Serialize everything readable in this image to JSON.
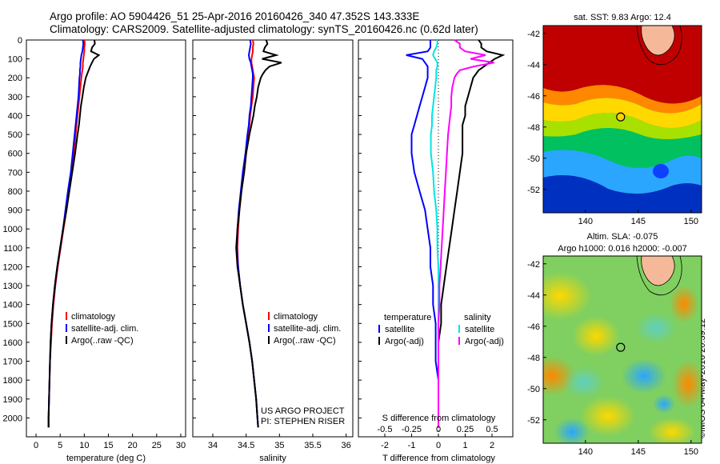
{
  "header": {
    "title_line1": "Argo profile: AO 5904426_51 25-Apr-2016 20160426_340 47.352S 143.333E",
    "title_line2": "Climatology: CARS2009. Satellite-adjusted climatology: synTS_20160426.nc (0.62d later)"
  },
  "timestamp": "©IMOS 04-May-2016 20:39:12",
  "colors": {
    "climatology": "#ff0000",
    "satellite": "#0000ff",
    "argo": "#000000",
    "salinity_satellite": "#00e5e5",
    "salinity_argo": "#ff00ff",
    "land": "#f5b99a"
  },
  "chart_data": [
    {
      "type": "line",
      "panel": "temperature",
      "xlabel": "temperature (deg C)",
      "ylabel": "",
      "xlim": [
        -2,
        31
      ],
      "ylim": [
        2100,
        0
      ],
      "xticks": [
        "0",
        "5",
        "10",
        "15",
        "20",
        "25",
        "30"
      ],
      "yticks": [
        "0",
        "100",
        "200",
        "300",
        "400",
        "500",
        "600",
        "700",
        "800",
        "900",
        "1000",
        "1100",
        "1200",
        "1300",
        "1400",
        "1500",
        "1600",
        "1700",
        "1800",
        "1900",
        "2000"
      ],
      "y": [
        0,
        20,
        40,
        60,
        80,
        100,
        120,
        140,
        160,
        180,
        200,
        250,
        300,
        350,
        400,
        450,
        500,
        600,
        700,
        800,
        900,
        1000,
        1100,
        1200,
        1300,
        1400,
        1500,
        1600,
        1700,
        1800,
        1900,
        2000,
        2050
      ],
      "series": [
        {
          "name": "climatology",
          "values": [
            10.0,
            10.1,
            10.0,
            10.0,
            9.9,
            9.8,
            9.7,
            9.7,
            9.6,
            9.5,
            9.4,
            9.2,
            9.0,
            8.8,
            8.6,
            8.4,
            8.2,
            7.8,
            7.3,
            6.8,
            6.3,
            5.7,
            5.1,
            4.5,
            4.0,
            3.6,
            3.3,
            3.1,
            2.9,
            2.8,
            2.7,
            2.6,
            2.6
          ]
        },
        {
          "name": "satellite-adj. clim.",
          "values": [
            9.7,
            9.8,
            9.7,
            9.6,
            9.4,
            9.3,
            9.2,
            9.2,
            9.1,
            9.1,
            9.0,
            8.9,
            8.8,
            8.6,
            8.4,
            8.2,
            8.0,
            7.6,
            7.2,
            6.6,
            6.1,
            5.6,
            5.0,
            4.4,
            3.9,
            3.5,
            3.2,
            3.0,
            2.9,
            2.8,
            2.7,
            2.6,
            2.6
          ]
        },
        {
          "name": "Argo(..raw -QC)",
          "values": [
            12.1,
            12.2,
            11.6,
            11.4,
            13.0,
            12.0,
            11.6,
            11.2,
            10.9,
            10.6,
            10.3,
            9.9,
            9.6,
            9.3,
            9.1,
            8.9,
            8.6,
            8.1,
            7.5,
            6.9,
            6.3,
            5.6,
            5.0,
            4.4,
            3.9,
            3.5,
            3.2,
            3.0,
            2.9,
            2.8,
            2.7,
            2.6,
            2.6
          ]
        }
      ],
      "legend": [
        "climatology",
        "satellite-adj. clim.",
        "Argo(..raw -QC)"
      ]
    },
    {
      "type": "line",
      "panel": "salinity",
      "xlabel": "salinity",
      "xlim": [
        33.7,
        36.1
      ],
      "ylim": [
        2100,
        0
      ],
      "xticks": [
        "34",
        "34.5",
        "35",
        "35.5",
        "36"
      ],
      "y": [
        0,
        20,
        40,
        60,
        80,
        100,
        120,
        140,
        160,
        180,
        200,
        250,
        300,
        350,
        400,
        450,
        500,
        600,
        700,
        800,
        900,
        1000,
        1100,
        1200,
        1300,
        1400,
        1500,
        1600,
        1700,
        1800,
        1900,
        2000,
        2050
      ],
      "series": [
        {
          "name": "climatology",
          "values": [
            34.6,
            34.61,
            34.6,
            34.6,
            34.59,
            34.58,
            34.58,
            34.59,
            34.6,
            34.61,
            34.62,
            34.61,
            34.6,
            34.58,
            34.56,
            34.55,
            34.53,
            34.5,
            34.47,
            34.43,
            34.4,
            34.38,
            34.37,
            34.38,
            34.41,
            34.45,
            34.5,
            34.55,
            34.59,
            34.62,
            34.65,
            34.67,
            34.68
          ]
        },
        {
          "name": "satellite-adj. clim.",
          "values": [
            34.56,
            34.57,
            34.56,
            34.55,
            34.54,
            34.55,
            34.57,
            34.58,
            34.59,
            34.6,
            34.6,
            34.59,
            34.58,
            34.57,
            34.55,
            34.54,
            34.52,
            34.49,
            34.45,
            34.42,
            34.39,
            34.37,
            34.36,
            34.38,
            34.41,
            34.45,
            34.5,
            34.55,
            34.59,
            34.62,
            34.65,
            34.67,
            34.68
          ]
        },
        {
          "name": "Argo(..raw -QC)",
          "values": [
            34.8,
            34.82,
            34.78,
            34.76,
            34.95,
            34.74,
            35.03,
            34.85,
            34.79,
            34.75,
            34.72,
            34.68,
            34.66,
            34.63,
            34.61,
            34.58,
            34.55,
            34.5,
            34.47,
            34.43,
            34.4,
            34.37,
            34.35,
            34.37,
            34.41,
            34.45,
            34.5,
            34.55,
            34.59,
            34.62,
            34.65,
            34.67,
            34.68
          ]
        }
      ],
      "legend": [
        "climatology",
        "satellite-adj. clim.",
        "Argo(..raw -QC)"
      ],
      "annotations": [
        "US ARGO PROJECT",
        "PI: STEPHEN RISER"
      ]
    },
    {
      "type": "line",
      "panel": "difference",
      "xlabel": "T difference from climatology",
      "xlabel_top": "S difference from climatology",
      "xlim_T": [
        -2.6,
        2.6
      ],
      "xticks_T": [
        "-2",
        "-1",
        "0",
        "1",
        "2"
      ],
      "xticks_S": [
        "-0.5",
        "-0.25",
        "0",
        "0.25",
        "0.5"
      ],
      "ylim": [
        2100,
        0
      ],
      "y": [
        0,
        20,
        40,
        60,
        80,
        100,
        120,
        140,
        160,
        180,
        200,
        250,
        300,
        350,
        400,
        450,
        500,
        600,
        700,
        800,
        900,
        1000,
        1100,
        1200,
        1300,
        1400,
        1500,
        1600,
        1700,
        1800,
        1900,
        2000,
        2050
      ],
      "series": [
        {
          "name": "temperature satellite",
          "values": [
            -0.3,
            -0.3,
            -0.3,
            -0.4,
            -1.2,
            -0.6,
            -0.5,
            -0.4,
            -0.4,
            -0.4,
            -0.4,
            -0.5,
            -0.6,
            -0.7,
            -0.8,
            -0.9,
            -1.0,
            -1.0,
            -0.9,
            -0.7,
            -0.5,
            -0.4,
            -0.3,
            -0.3,
            -0.2,
            -0.2,
            -0.1,
            -0.1,
            -0.1,
            0.0,
            0.0,
            0.0,
            0.0
          ]
        },
        {
          "name": "temperature Argo(-adj)",
          "values": [
            1.5,
            1.6,
            1.6,
            1.8,
            2.4,
            2.1,
            1.9,
            1.7,
            1.5,
            1.4,
            1.3,
            1.2,
            1.1,
            1.0,
            1.0,
            0.9,
            0.9,
            0.9,
            0.8,
            0.7,
            0.6,
            0.5,
            0.4,
            0.3,
            0.2,
            0.1,
            0.1,
            0.0,
            0.0,
            0.0,
            0.0,
            0.0,
            0.0
          ]
        },
        {
          "name": "salinity satellite",
          "values": [
            -0.01,
            -0.01,
            -0.02,
            -0.04,
            -0.05,
            -0.03,
            -0.01,
            -0.01,
            -0.02,
            -0.02,
            -0.02,
            -0.03,
            -0.04,
            -0.05,
            -0.06,
            -0.06,
            -0.07,
            -0.07,
            -0.05,
            -0.04,
            -0.02,
            -0.01,
            -0.01,
            0.0,
            0.0,
            0.0,
            0.0,
            0.0,
            0.0,
            0.0,
            0.0,
            0.0,
            0.0
          ]
        },
        {
          "name": "salinity Argo(-adj)",
          "values": [
            0.15,
            0.2,
            0.2,
            0.25,
            0.44,
            0.3,
            0.52,
            0.33,
            0.2,
            0.17,
            0.15,
            0.13,
            0.12,
            0.12,
            0.11,
            0.1,
            0.09,
            0.08,
            0.07,
            0.06,
            0.05,
            0.04,
            0.03,
            0.02,
            0.01,
            0.01,
            0.0,
            0.0,
            0.0,
            0.0,
            0.0,
            0.0,
            0.0
          ]
        }
      ],
      "legend_groups": [
        {
          "title": "temperature",
          "items": [
            "satellite",
            "Argo(-adj)"
          ]
        },
        {
          "title": "salinity",
          "items": [
            "satellite",
            "Argo(-adj)"
          ]
        }
      ]
    },
    {
      "type": "heatmap",
      "panel": "sst_map",
      "title": "sat. SST: 9.83 Argo: 12.4",
      "xlim": [
        136,
        151
      ],
      "ylim": [
        -53.5,
        -41.5
      ],
      "xticks": [
        "140",
        "145",
        "150"
      ],
      "yticks": [
        "-42",
        "-44",
        "-46",
        "-48",
        "-50",
        "-52"
      ],
      "marker": {
        "lon": 143.333,
        "lat": -47.352
      }
    },
    {
      "type": "heatmap",
      "panel": "sla_map",
      "title": "Altim. SLA: -0.075",
      "subtitle": "Argo h1000: 0.016 h2000: -0.007",
      "xlim": [
        136,
        151
      ],
      "ylim": [
        -53.5,
        -41.5
      ],
      "xticks": [
        "140",
        "145",
        "150"
      ],
      "yticks": [
        "-42",
        "-44",
        "-46",
        "-48",
        "-50",
        "-52"
      ],
      "marker": {
        "lon": 143.333,
        "lat": -47.352
      }
    }
  ]
}
